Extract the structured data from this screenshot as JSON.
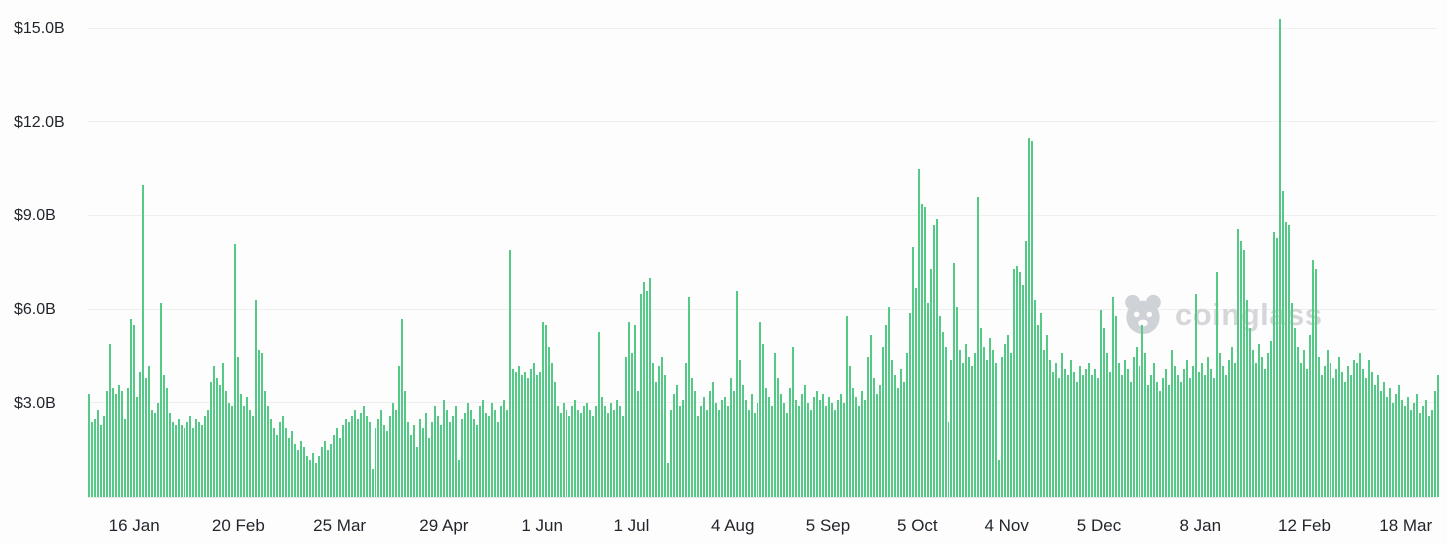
{
  "watermark": {
    "text": "coinglass",
    "logo": "coinglass-bear-logo",
    "color": "#d4d6d9"
  },
  "chart_data": {
    "type": "bar",
    "title": "",
    "xlabel": "",
    "ylabel": "",
    "unit": "USD billions",
    "bar_color": "#55ca87",
    "background": "#fdfdfd",
    "grid": "horizontal",
    "legend": "none",
    "ylim": [
      0,
      15.6
    ],
    "y_ticks": [
      {
        "value": 3,
        "label": "$3.0B"
      },
      {
        "value": 6,
        "label": "$6.0B"
      },
      {
        "value": 9,
        "label": "$9.0B"
      },
      {
        "value": 12,
        "label": "$12.0B"
      },
      {
        "value": 15,
        "label": "$15.0B"
      }
    ],
    "x_ticks": [
      {
        "index": 15,
        "label": "16 Jan"
      },
      {
        "index": 50,
        "label": "20 Feb"
      },
      {
        "index": 84,
        "label": "25 Mar"
      },
      {
        "index": 119,
        "label": "29 Apr"
      },
      {
        "index": 152,
        "label": "1 Jun"
      },
      {
        "index": 182,
        "label": "1 Jul"
      },
      {
        "index": 216,
        "label": "4 Aug"
      },
      {
        "index": 248,
        "label": "5 Sep"
      },
      {
        "index": 278,
        "label": "5 Oct"
      },
      {
        "index": 308,
        "label": "4 Nov"
      },
      {
        "index": 339,
        "label": "5 Dec"
      },
      {
        "index": 373,
        "label": "8 Jan"
      },
      {
        "index": 408,
        "label": "12 Feb"
      },
      {
        "index": 442,
        "label": "18 Mar"
      }
    ],
    "values": [
      3.3,
      2.4,
      2.5,
      2.8,
      2.3,
      2.6,
      3.4,
      4.9,
      3.5,
      3.3,
      3.6,
      3.4,
      2.5,
      3.5,
      5.7,
      5.5,
      3.2,
      4.0,
      10.0,
      3.8,
      4.2,
      2.8,
      2.7,
      3.0,
      6.2,
      3.9,
      3.5,
      2.7,
      2.4,
      2.3,
      2.5,
      2.3,
      2.2,
      2.4,
      2.6,
      2.2,
      2.5,
      2.4,
      2.3,
      2.6,
      2.8,
      3.7,
      4.2,
      3.8,
      3.6,
      4.3,
      3.4,
      3.0,
      2.9,
      8.1,
      4.5,
      3.3,
      2.9,
      3.2,
      2.8,
      2.6,
      6.3,
      4.7,
      4.6,
      3.4,
      2.9,
      2.5,
      2.2,
      2.0,
      2.4,
      2.6,
      2.2,
      1.9,
      2.1,
      1.7,
      1.5,
      1.8,
      1.6,
      1.3,
      1.2,
      1.4,
      1.1,
      1.3,
      1.6,
      1.8,
      1.5,
      1.7,
      2.0,
      2.2,
      1.9,
      2.3,
      2.5,
      2.4,
      2.6,
      2.8,
      2.5,
      2.7,
      2.9,
      2.6,
      2.4,
      0.9,
      2.2,
      2.5,
      2.8,
      2.3,
      2.1,
      2.6,
      3.0,
      2.8,
      4.2,
      5.7,
      3.4,
      2.4,
      2.0,
      2.3,
      1.6,
      2.5,
      2.2,
      2.7,
      1.9,
      2.4,
      2.9,
      2.6,
      2.3,
      3.1,
      2.8,
      2.4,
      2.6,
      2.9,
      1.2,
      2.5,
      2.7,
      3.0,
      2.8,
      2.5,
      2.3,
      2.9,
      3.1,
      2.7,
      2.6,
      3.0,
      2.8,
      2.4,
      2.9,
      3.1,
      2.8,
      7.9,
      4.1,
      4.0,
      4.2,
      3.9,
      4.0,
      3.8,
      4.1,
      4.3,
      3.9,
      4.0,
      5.6,
      5.5,
      4.8,
      4.3,
      3.7,
      2.9,
      2.7,
      3.0,
      2.8,
      2.6,
      2.9,
      3.1,
      2.8,
      2.7,
      2.9,
      3.0,
      2.8,
      2.6,
      2.9,
      5.3,
      3.2,
      2.9,
      2.7,
      3.0,
      2.8,
      3.1,
      2.9,
      2.6,
      4.5,
      5.6,
      4.6,
      5.5,
      3.4,
      6.5,
      6.9,
      6.6,
      7.0,
      4.3,
      3.7,
      4.2,
      4.5,
      3.9,
      1.1,
      2.8,
      3.3,
      3.6,
      2.9,
      3.1,
      4.3,
      6.4,
      3.8,
      3.4,
      2.6,
      2.9,
      3.2,
      2.8,
      3.4,
      3.7,
      3.0,
      2.8,
      3.1,
      3.2,
      2.9,
      3.8,
      3.4,
      6.6,
      4.4,
      3.6,
      3.1,
      2.8,
      3.3,
      2.7,
      3.0,
      5.6,
      4.9,
      3.5,
      3.2,
      2.9,
      4.6,
      3.8,
      3.3,
      3.0,
      2.7,
      3.5,
      4.8,
      3.1,
      2.9,
      3.3,
      3.6,
      3.0,
      2.8,
      3.2,
      3.4,
      3.1,
      3.3,
      2.9,
      3.2,
      3.0,
      2.8,
      3.1,
      3.3,
      3.0,
      5.8,
      4.2,
      3.5,
      3.2,
      2.9,
      3.4,
      3.1,
      4.5,
      5.2,
      3.8,
      3.3,
      3.6,
      4.8,
      5.5,
      6.1,
      4.4,
      3.9,
      3.5,
      4.1,
      3.7,
      4.6,
      5.9,
      8.0,
      6.7,
      10.5,
      9.4,
      9.3,
      6.2,
      7.3,
      8.7,
      8.9,
      5.8,
      5.3,
      4.8,
      2.4,
      4.4,
      7.5,
      6.1,
      4.7,
      4.3,
      4.9,
      4.5,
      4.2,
      4.6,
      9.6,
      5.4,
      4.8,
      4.4,
      5.1,
      4.7,
      4.3,
      1.2,
      4.5,
      4.9,
      5.2,
      4.6,
      7.3,
      7.4,
      7.2,
      6.8,
      8.2,
      11.5,
      11.4,
      6.3,
      5.5,
      5.9,
      4.7,
      5.2,
      4.4,
      4.0,
      4.3,
      3.8,
      4.6,
      4.1,
      3.9,
      4.4,
      4.0,
      3.7,
      4.2,
      3.9,
      4.1,
      4.3,
      3.9,
      4.1,
      3.8,
      6.0,
      5.4,
      4.6,
      4.0,
      6.4,
      5.8,
      4.3,
      3.9,
      4.4,
      4.1,
      3.7,
      4.5,
      4.8,
      4.2,
      5.5,
      4.6,
      3.6,
      3.9,
      4.3,
      3.7,
      3.4,
      3.8,
      4.1,
      3.6,
      4.7,
      4.2,
      3.9,
      3.7,
      4.1,
      4.4,
      3.8,
      4.2,
      6.5,
      4.0,
      4.3,
      3.9,
      4.5,
      4.1,
      3.8,
      7.2,
      4.6,
      4.2,
      3.9,
      4.4,
      4.8,
      4.3,
      8.6,
      8.2,
      7.9,
      6.3,
      5.4,
      4.7,
      4.3,
      4.9,
      4.5,
      4.1,
      4.6,
      5.0,
      8.5,
      8.3,
      15.3,
      9.8,
      8.8,
      8.7,
      6.2,
      5.4,
      4.8,
      4.3,
      4.7,
      4.1,
      5.2,
      7.6,
      7.3,
      4.5,
      3.9,
      4.2,
      4.7,
      4.3,
      3.8,
      4.1,
      4.5,
      4.0,
      3.7,
      4.2,
      3.9,
      4.4,
      4.3,
      4.6,
      4.1,
      3.8,
      4.4,
      4.0,
      3.6,
      3.9,
      3.4,
      3.7,
      3.2,
      3.5,
      3.0,
      3.3,
      3.6,
      3.1,
      2.9,
      3.2,
      2.8,
      3.0,
      3.3,
      2.7,
      2.9,
      3.1,
      2.6,
      2.8,
      3.4,
      3.9
    ]
  }
}
